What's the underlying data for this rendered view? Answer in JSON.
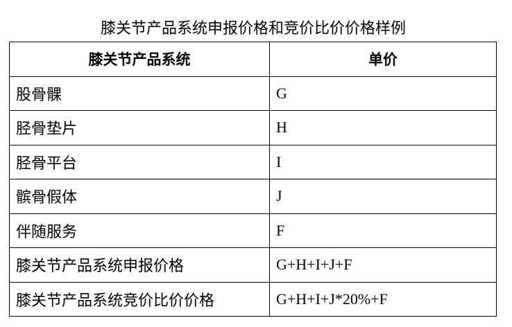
{
  "title": "膝关节产品系统申报价格和竞价比价价格样例",
  "table": {
    "headers": [
      "膝关节产品系统",
      "单价"
    ],
    "rows": [
      [
        "股骨髁",
        "G"
      ],
      [
        "胫骨垫片",
        "H"
      ],
      [
        "胫骨平台",
        "I"
      ],
      [
        "髌骨假体",
        "J"
      ],
      [
        "伴随服务",
        "F"
      ],
      [
        "膝关节产品系统申报价格",
        "G+H+I+J+F"
      ],
      [
        "膝关节产品系统竞价比价价格",
        "G+H+I+J*20%+F"
      ]
    ]
  }
}
